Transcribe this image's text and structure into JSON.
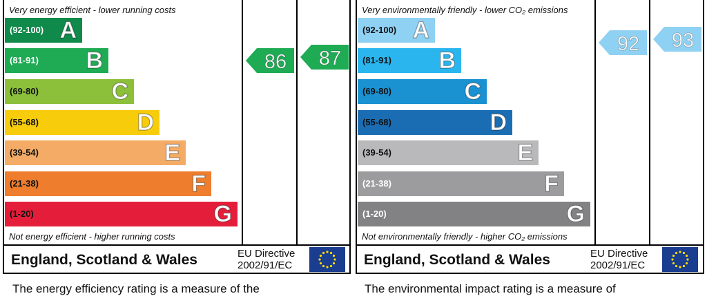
{
  "chart_data": [
    {
      "type": "bar",
      "caption_top": "Very energy efficient - lower running costs",
      "caption_bottom": "Not energy efficient - higher running costs",
      "bands": [
        {
          "range": "(92-100)",
          "letter": "A",
          "color": "#0f8a4a",
          "text_color": "#ffffff"
        },
        {
          "range": "(81-91)",
          "letter": "B",
          "color": "#1eab54",
          "text_color": "#ffffff"
        },
        {
          "range": "(69-80)",
          "letter": "C",
          "color": "#8cbf3a",
          "text_color": "#111111"
        },
        {
          "range": "(55-68)",
          "letter": "D",
          "color": "#f7cc0b",
          "text_color": "#111111"
        },
        {
          "range": "(39-54)",
          "letter": "E",
          "color": "#f4ab65",
          "text_color": "#111111"
        },
        {
          "range": "(21-38)",
          "letter": "F",
          "color": "#ee7d2d",
          "text_color": "#111111"
        },
        {
          "range": "(1-20)",
          "letter": "G",
          "color": "#e41e3a",
          "text_color": "#111111"
        }
      ],
      "current": {
        "value": 86,
        "color": "#1eab54"
      },
      "potential": {
        "value": 87,
        "color": "#1eab54"
      },
      "footer_title": "England, Scotland & Wales",
      "directive_line1": "EU Directive",
      "directive_line2": "2002/91/EC",
      "text_below": "The energy efficiency rating is a measure of the"
    },
    {
      "type": "bar",
      "caption_top": "Very environmentally friendly - lower CO₂ emissions",
      "caption_bottom": "Not environmentally friendly - higher CO₂ emissions",
      "bands": [
        {
          "range": "(92-100)",
          "letter": "A",
          "color": "#8fd1f3",
          "text_color": "#111111"
        },
        {
          "range": "(81-91)",
          "letter": "B",
          "color": "#2ab5ef",
          "text_color": "#111111"
        },
        {
          "range": "(69-80)",
          "letter": "C",
          "color": "#1a91d1",
          "text_color": "#111111"
        },
        {
          "range": "(55-68)",
          "letter": "D",
          "color": "#1b6db3",
          "text_color": "#111111"
        },
        {
          "range": "(39-54)",
          "letter": "E",
          "color": "#b9b9bb",
          "text_color": "#111111"
        },
        {
          "range": "(21-38)",
          "letter": "F",
          "color": "#9c9c9e",
          "text_color": "#ffffff"
        },
        {
          "range": "(1-20)",
          "letter": "G",
          "color": "#828284",
          "text_color": "#ffffff"
        }
      ],
      "current": {
        "value": 92,
        "color": "#8fd1f3"
      },
      "potential": {
        "value": 93,
        "color": "#8fd1f3"
      },
      "footer_title": "England, Scotland & Wales",
      "directive_line1": "EU Directive",
      "directive_line2": "2002/91/EC",
      "text_below": "The environmental impact rating is a measure of"
    }
  ]
}
